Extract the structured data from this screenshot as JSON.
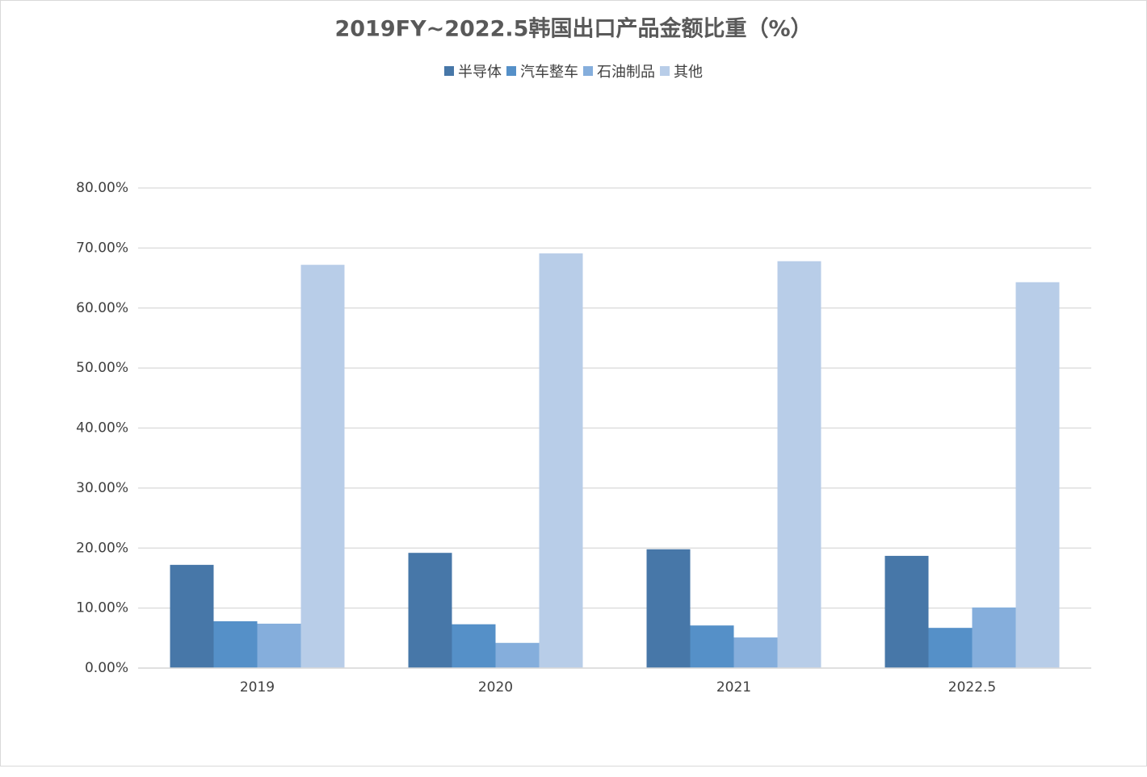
{
  "chart_data": {
    "type": "bar",
    "title": "2019FY~2022.5韩国出口产品金额比重（%）",
    "categories": [
      "2019",
      "2020",
      "2021",
      "2022.5"
    ],
    "series": [
      {
        "name": "半导体",
        "color": "#4777a8",
        "values": [
          17.2,
          19.2,
          19.8,
          18.7
        ]
      },
      {
        "name": "汽车整车",
        "color": "#5590c8",
        "values": [
          7.8,
          7.3,
          7.1,
          6.7
        ]
      },
      {
        "name": "石油制品",
        "color": "#85aedc",
        "values": [
          7.4,
          4.2,
          5.1,
          10.1
        ]
      },
      {
        "name": "其他",
        "color": "#b8cde8",
        "values": [
          67.2,
          69.1,
          67.8,
          64.3
        ]
      }
    ],
    "ylim": [
      0,
      80
    ],
    "yticks": [
      {
        "value": 0,
        "label": "0.00%"
      },
      {
        "value": 10,
        "label": "10.00%"
      },
      {
        "value": 20,
        "label": "20.00%"
      },
      {
        "value": 30,
        "label": "30.00%"
      },
      {
        "value": 40,
        "label": "40.00%"
      },
      {
        "value": 50,
        "label": "50.00%"
      },
      {
        "value": 60,
        "label": "60.00%"
      },
      {
        "value": 70,
        "label": "70.00%"
      },
      {
        "value": 80,
        "label": "80.00%"
      }
    ],
    "grid": true
  }
}
